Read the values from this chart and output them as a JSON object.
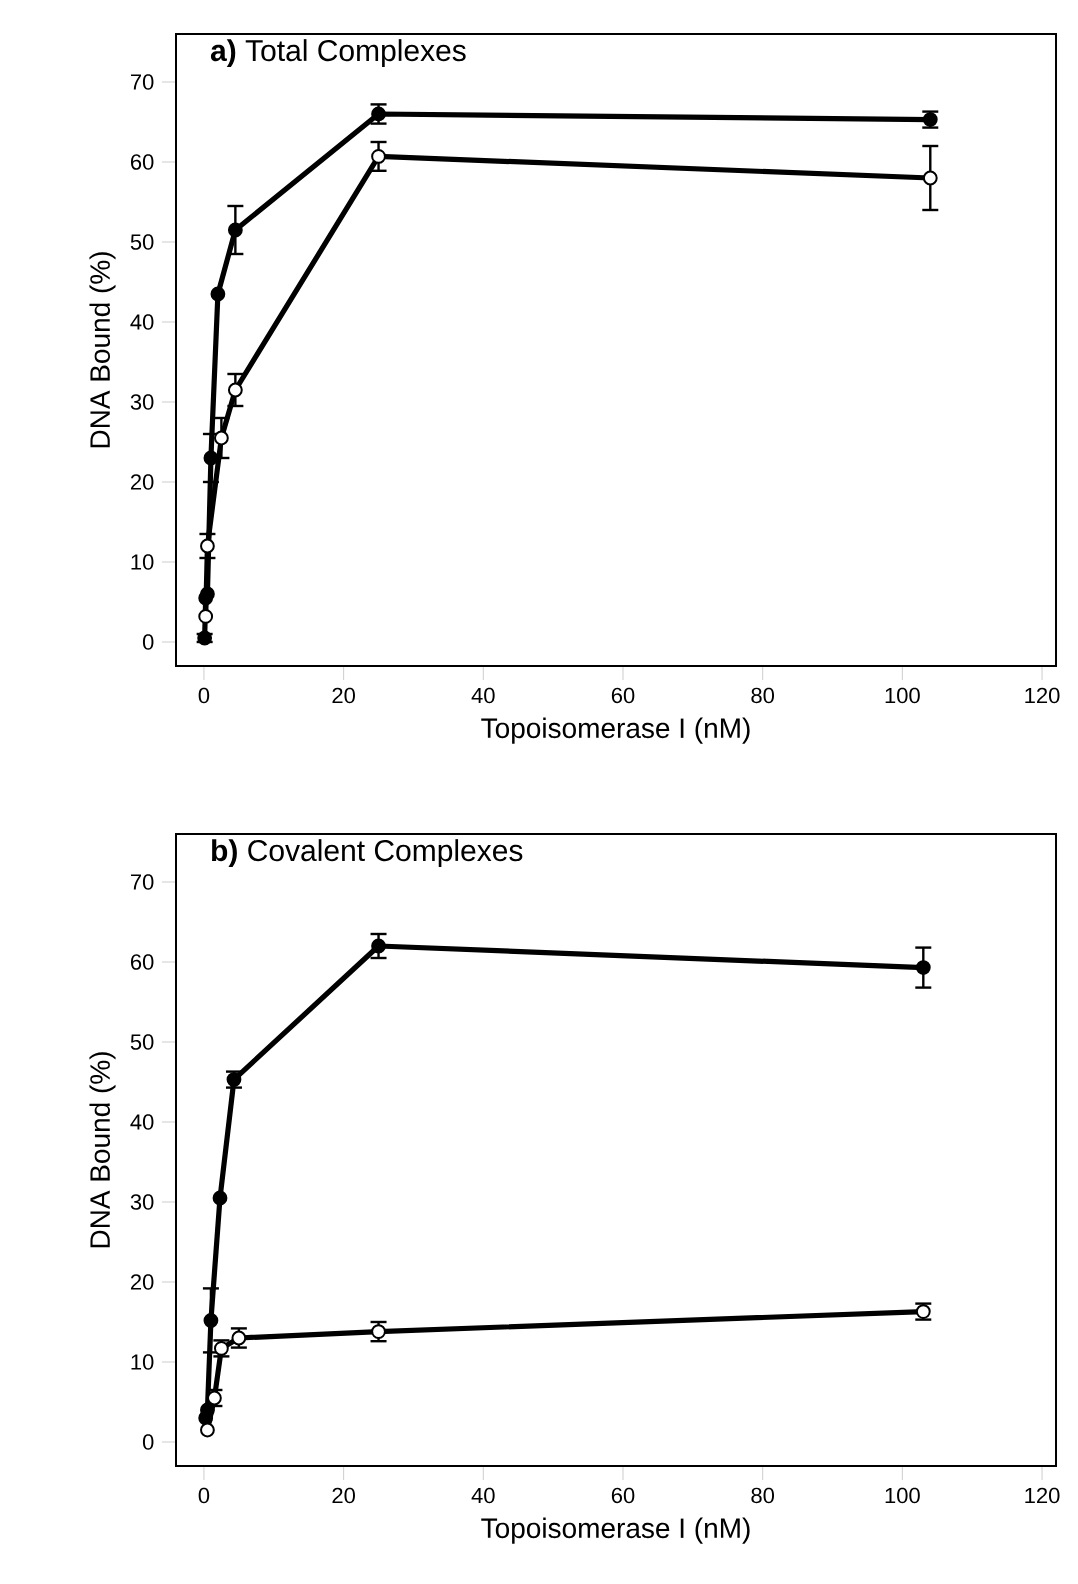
{
  "chart_data": [
    {
      "type": "line",
      "title": "**a)** Total Complexes",
      "xlabel": "Topoisomerase I (nM)",
      "ylabel": "DNA Bound (%)",
      "xlim": [
        -4,
        122
      ],
      "ylim": [
        -3,
        76
      ],
      "xticks": [
        0,
        20,
        40,
        60,
        80,
        100,
        120
      ],
      "yticks": [
        0,
        10,
        20,
        30,
        40,
        50,
        60,
        70
      ],
      "marker": "circle",
      "line_style": "solid",
      "series": [
        {
          "color": "#000000",
          "x": [
            0.1,
            0.25,
            0.5,
            1,
            2,
            4.5,
            25,
            104
          ],
          "values": [
            0.5,
            5.5,
            6,
            23,
            43.5,
            51.5,
            66,
            65.3
          ],
          "errors": [
            0.5,
            null,
            null,
            3,
            null,
            3,
            1.2,
            1
          ]
        },
        {
          "color": "#000000",
          "x": [
            0.25,
            0.5,
            2.5,
            4.5,
            25,
            104
          ],
          "values": [
            3.2,
            12,
            25.5,
            31.5,
            60.7,
            58
          ],
          "errors": [
            null,
            1.5,
            2.5,
            2,
            1.8,
            4
          ]
        }
      ]
    },
    {
      "type": "line",
      "title": "**b)** Covalent Complexes",
      "xlabel": "Topoisomerase I (nM)",
      "ylabel": "DNA Bound (%)",
      "xlim": [
        -4,
        122
      ],
      "ylim": [
        -3,
        76
      ],
      "xticks": [
        0,
        20,
        40,
        60,
        80,
        100,
        120
      ],
      "yticks": [
        0,
        10,
        20,
        30,
        40,
        50,
        60,
        70
      ],
      "marker": "circle",
      "line_style": "solid",
      "series": [
        {
          "color": "#000000",
          "x": [
            0.25,
            0.5,
            1,
            2.3,
            4.3,
            25,
            103
          ],
          "values": [
            3,
            4,
            15.2,
            30.5,
            45.3,
            62,
            59.3
          ],
          "errors": [
            null,
            null,
            4,
            null,
            1,
            1.5,
            2.5
          ]
        },
        {
          "color": "#000000",
          "x": [
            0.5,
            1.5,
            2.5,
            5,
            25,
            103
          ],
          "values": [
            1.5,
            5.5,
            11.7,
            13,
            13.8,
            16.3
          ],
          "errors": [
            null,
            1,
            1,
            1.2,
            1.2,
            1
          ]
        }
      ]
    }
  ]
}
